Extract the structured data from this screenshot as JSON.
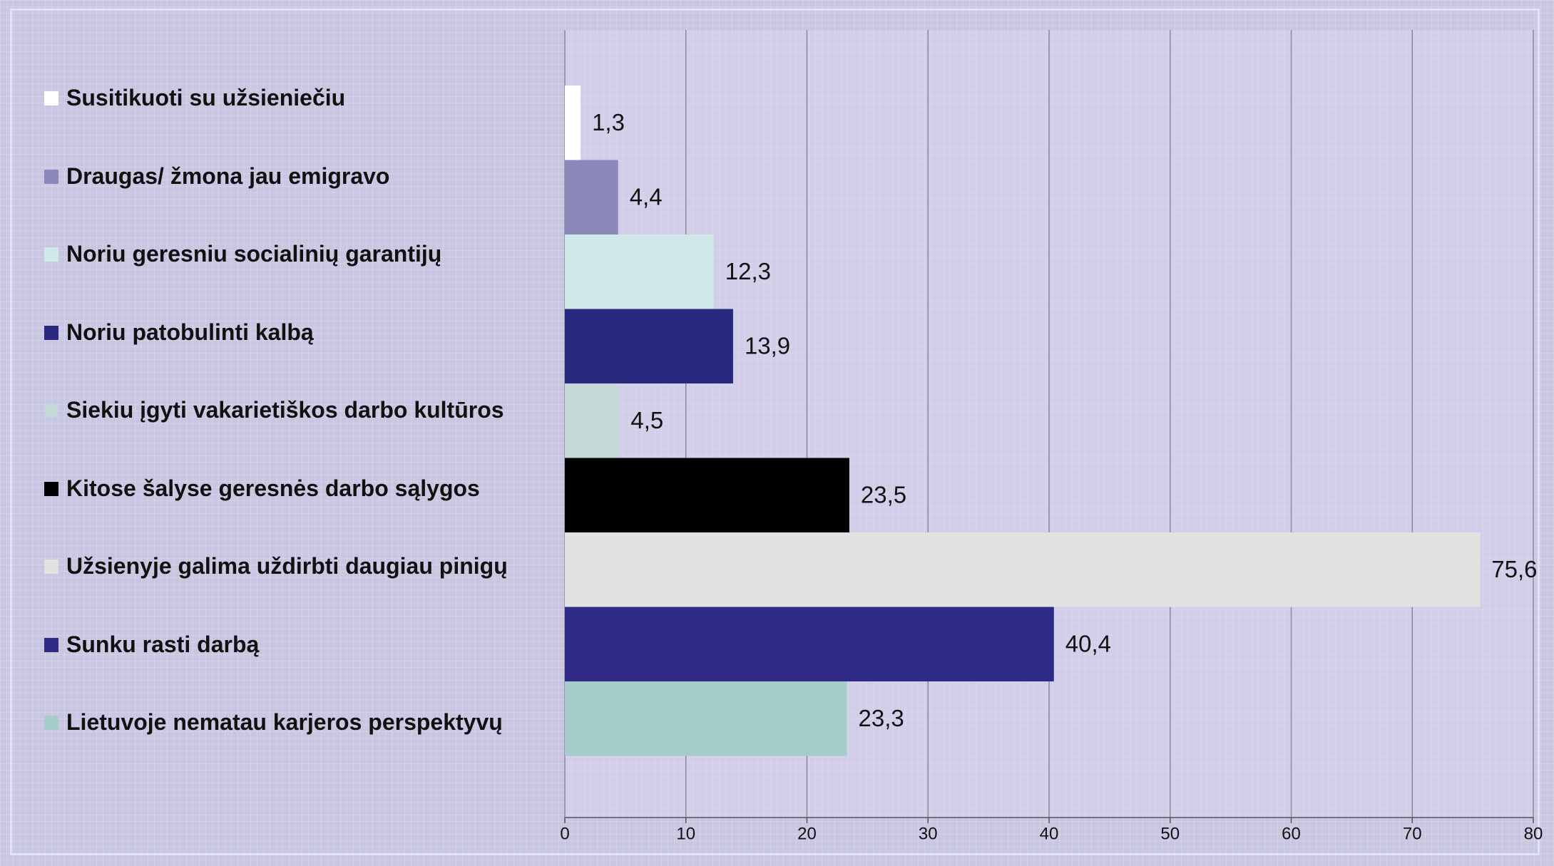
{
  "chart_data": {
    "type": "bar",
    "orientation": "horizontal",
    "categories": [
      "Susitikuoti su užsieniečiu",
      "Draugas/ žmona jau emigravo",
      "Noriu geresniu socialinių garantijų",
      "Noriu patobulinti kalbą",
      "Siekiu įgyti vakarietiškos darbo kultūros",
      "Kitose šalyse geresnės darbo sąlygos",
      "Užsienyje galima uždirbti daugiau pinigų",
      "Sunku rasti darbą",
      "Lietuvoje nematau karjeros perspektyvų"
    ],
    "values": [
      1.3,
      4.4,
      12.3,
      13.9,
      4.5,
      23.5,
      75.6,
      40.4,
      23.3
    ],
    "value_labels": [
      "1,3",
      "4,4",
      "12,3",
      "13,9",
      "4,5",
      "23,5",
      "75,6",
      "40,4",
      "23,3"
    ],
    "colors": [
      "#ffffff",
      "#8b89bb",
      "#cfe8e8",
      "#29287f",
      "#c4d8d8",
      "#000000",
      "#e2e2e2",
      "#2e2a86",
      "#a6cccc"
    ],
    "xlim": [
      0,
      80
    ],
    "xticks": [
      0,
      10,
      20,
      30,
      40,
      50,
      60,
      70,
      80
    ],
    "grid": true
  }
}
